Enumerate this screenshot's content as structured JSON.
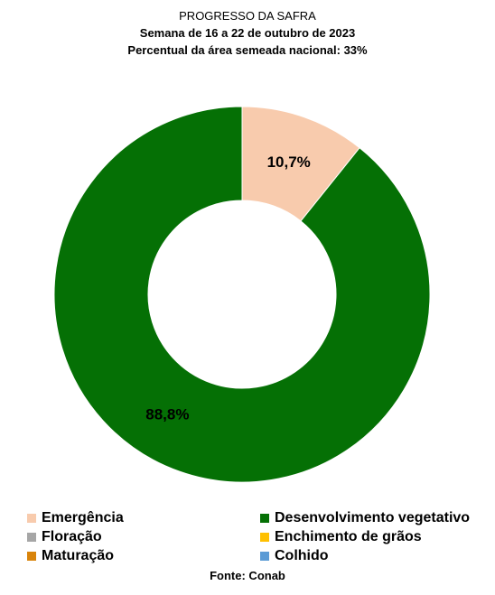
{
  "header": {
    "title": "PROGRESSO DA SAFRA",
    "subtitle": "Semana de 16 a 22 de outubro de 2023",
    "note": "Percentual da área semeada nacional: 33%"
  },
  "chart_data": {
    "type": "pie",
    "donut": true,
    "title": "PROGRESSO DA SAFRA",
    "categories": [
      "Emergência",
      "Desenvolvimento vegetativo",
      "Floração",
      "Enchimento de grãos",
      "Maturação",
      "Colhido"
    ],
    "values": [
      10.7,
      88.8,
      0,
      0,
      0,
      0
    ],
    "data_labels": [
      "10,7%",
      "88,8%",
      "",
      "",
      "",
      ""
    ],
    "colors": [
      "#f8cbad",
      "#057005",
      "#a6a6a6",
      "#ffc000",
      "#d9840b",
      "#5b9bd5"
    ],
    "legend_position": "bottom"
  },
  "legend": [
    {
      "label": "Emergência",
      "color": "#f8cbad"
    },
    {
      "label": "Desenvolvimento vegetativo",
      "color": "#057005"
    },
    {
      "label": "Floração",
      "color": "#a6a6a6"
    },
    {
      "label": "Enchimento de grãos",
      "color": "#ffc000"
    },
    {
      "label": "Maturação",
      "color": "#d9840b"
    },
    {
      "label": "Colhido",
      "color": "#5b9bd5"
    }
  ],
  "footer": {
    "source": "Fonte: Conab"
  }
}
